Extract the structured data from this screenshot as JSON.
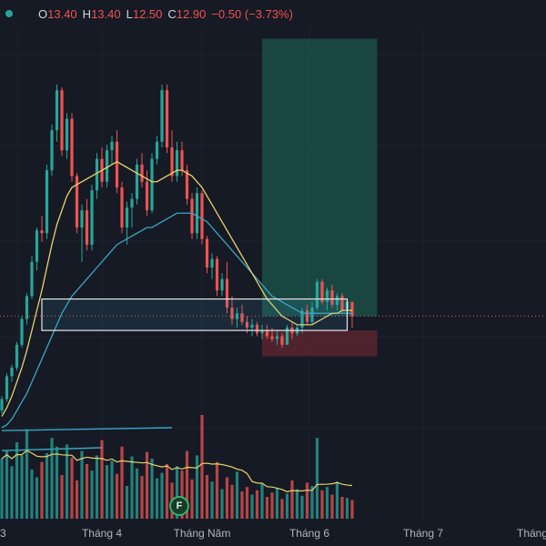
{
  "ohlc": {
    "O_label": "O",
    "O": "13.40",
    "H_label": "H",
    "H": "13.40",
    "L_label": "L",
    "L": "12.50",
    "C_label": "C",
    "C": "12.90",
    "change": "−0.50 (−3.73%)"
  },
  "badge": {
    "label": "F"
  },
  "colors": {
    "background": "#161a25",
    "up": "#26a69a",
    "down": "#ef5350",
    "ma_fast": "#e8d36a",
    "ma_slow": "#3aa7c4",
    "target_zone": "#1f6b5b",
    "stop_zone": "#5c2530"
  },
  "chart_data": {
    "type": "candlestick",
    "x_ticks": [
      "3",
      "Tháng 4",
      "Tháng Năm",
      "Tháng 6",
      "Tháng 7",
      "Tháng"
    ],
    "price_range": [
      9.0,
      23.0
    ],
    "candles": [
      [
        9.6,
        10.1,
        9.5,
        10.0
      ],
      [
        10.0,
        10.9,
        9.9,
        10.8
      ],
      [
        10.8,
        11.2,
        10.6,
        11.1
      ],
      [
        11.1,
        12.0,
        11.0,
        11.9
      ],
      [
        11.9,
        12.9,
        11.8,
        12.8
      ],
      [
        12.8,
        13.7,
        12.6,
        13.6
      ],
      [
        13.6,
        15.0,
        13.5,
        14.8
      ],
      [
        14.8,
        16.0,
        14.5,
        15.9
      ],
      [
        15.9,
        16.4,
        15.5,
        15.8
      ],
      [
        15.8,
        18.2,
        15.6,
        18.0
      ],
      [
        18.0,
        19.6,
        17.8,
        19.4
      ],
      [
        19.4,
        21.0,
        19.0,
        20.8
      ],
      [
        20.8,
        20.9,
        18.5,
        18.7
      ],
      [
        18.7,
        20.0,
        18.4,
        19.8
      ],
      [
        19.8,
        20.0,
        17.6,
        17.8
      ],
      [
        17.8,
        17.9,
        15.8,
        16.0
      ],
      [
        16.0,
        16.8,
        14.8,
        16.6
      ],
      [
        16.6,
        17.0,
        15.2,
        15.4
      ],
      [
        15.4,
        17.5,
        15.2,
        17.3
      ],
      [
        17.3,
        18.6,
        17.0,
        18.4
      ],
      [
        18.4,
        18.8,
        17.4,
        17.6
      ],
      [
        17.6,
        18.9,
        17.4,
        18.7
      ],
      [
        18.7,
        19.2,
        18.2,
        19.0
      ],
      [
        19.0,
        19.4,
        17.2,
        17.4
      ],
      [
        17.4,
        17.6,
        15.8,
        16.0
      ],
      [
        16.0,
        16.9,
        15.4,
        16.7
      ],
      [
        16.7,
        17.2,
        16.0,
        17.0
      ],
      [
        17.0,
        18.4,
        16.8,
        18.2
      ],
      [
        18.2,
        18.6,
        17.4,
        17.6
      ],
      [
        17.6,
        18.0,
        16.4,
        16.6
      ],
      [
        16.6,
        18.6,
        16.5,
        18.4
      ],
      [
        18.4,
        19.2,
        18.2,
        19.0
      ],
      [
        19.0,
        21.0,
        18.8,
        20.8
      ],
      [
        20.8,
        21.0,
        18.6,
        18.8
      ],
      [
        18.8,
        19.4,
        17.6,
        17.8
      ],
      [
        17.8,
        19.0,
        17.6,
        18.7
      ],
      [
        18.7,
        19.0,
        17.8,
        18.0
      ],
      [
        18.0,
        18.2,
        16.8,
        17.0
      ],
      [
        17.0,
        17.2,
        15.6,
        15.8
      ],
      [
        15.8,
        17.4,
        15.6,
        17.2
      ],
      [
        17.2,
        17.3,
        15.4,
        15.6
      ],
      [
        15.6,
        15.7,
        14.4,
        14.6
      ],
      [
        14.6,
        15.1,
        14.2,
        14.9
      ],
      [
        14.9,
        15.0,
        13.6,
        13.8
      ],
      [
        13.8,
        14.4,
        13.6,
        14.2
      ],
      [
        14.2,
        14.8,
        13.0,
        13.2
      ],
      [
        13.2,
        13.6,
        12.6,
        12.8
      ],
      [
        12.8,
        13.2,
        12.5,
        13.0
      ],
      [
        13.0,
        13.3,
        12.6,
        12.7
      ],
      [
        12.7,
        12.9,
        12.3,
        12.5
      ],
      [
        12.5,
        12.8,
        12.2,
        12.6
      ],
      [
        12.6,
        12.7,
        12.2,
        12.3
      ],
      [
        12.3,
        12.6,
        12.1,
        12.4
      ],
      [
        12.4,
        12.6,
        12.1,
        12.2
      ],
      [
        12.2,
        12.5,
        12.0,
        12.1
      ],
      [
        12.1,
        12.4,
        11.9,
        12.2
      ],
      [
        12.2,
        12.3,
        11.8,
        11.9
      ],
      [
        11.9,
        12.6,
        11.9,
        12.5
      ],
      [
        12.5,
        12.7,
        12.1,
        12.3
      ],
      [
        12.3,
        12.6,
        12.2,
        12.5
      ],
      [
        12.5,
        13.2,
        12.3,
        13.1
      ],
      [
        13.1,
        13.3,
        12.6,
        12.7
      ],
      [
        12.7,
        13.4,
        12.6,
        13.2
      ],
      [
        13.2,
        14.2,
        13.1,
        14.1
      ],
      [
        14.1,
        14.2,
        13.3,
        13.4
      ],
      [
        13.4,
        13.9,
        13.1,
        13.8
      ],
      [
        13.8,
        14.0,
        13.2,
        13.3
      ],
      [
        13.3,
        13.7,
        13.1,
        13.6
      ],
      [
        13.6,
        13.7,
        13.0,
        13.1
      ],
      [
        13.1,
        13.5,
        12.9,
        13.4
      ],
      [
        13.4,
        13.4,
        12.5,
        12.9
      ]
    ],
    "volume_relative": [
      0.55,
      0.62,
      0.48,
      0.7,
      0.58,
      0.82,
      0.45,
      0.38,
      0.52,
      0.6,
      0.74,
      0.66,
      0.4,
      0.68,
      0.56,
      0.35,
      0.62,
      0.5,
      0.44,
      0.58,
      0.72,
      0.49,
      0.53,
      0.41,
      0.66,
      0.3,
      0.57,
      0.46,
      0.39,
      0.61,
      0.55,
      0.37,
      0.42,
      0.5,
      0.33,
      0.48,
      0.44,
      0.62,
      0.36,
      0.58,
      0.95,
      0.4,
      0.34,
      0.52,
      0.27,
      0.38,
      0.31,
      0.43,
      0.25,
      0.29,
      0.22,
      0.26,
      0.32,
      0.2,
      0.24,
      0.28,
      0.18,
      0.23,
      0.35,
      0.27,
      0.21,
      0.33,
      0.3,
      0.74,
      0.26,
      0.29,
      0.22,
      0.34,
      0.2,
      0.19,
      0.17
    ],
    "ma_fast": [
      9.4,
      9.7,
      10.1,
      10.6,
      11.1,
      11.7,
      12.4,
      13.1,
      13.8,
      14.6,
      15.4,
      16.1,
      16.6,
      17.1,
      17.4,
      17.5,
      17.6,
      17.7,
      17.8,
      17.9,
      18.0,
      18.1,
      18.2,
      18.3,
      18.2,
      18.1,
      18.0,
      17.9,
      17.8,
      17.7,
      17.6,
      17.6,
      17.7,
      17.8,
      17.9,
      18.0,
      18.0,
      17.9,
      17.8,
      17.6,
      17.4,
      17.1,
      16.8,
      16.5,
      16.2,
      15.9,
      15.6,
      15.3,
      15.0,
      14.7,
      14.4,
      14.1,
      13.8,
      13.5,
      13.3,
      13.1,
      12.9,
      12.8,
      12.7,
      12.6,
      12.6,
      12.6,
      12.6,
      12.7,
      12.8,
      12.9,
      13.0,
      13.0,
      13.1,
      13.1,
      13.1
    ],
    "ma_slow": [
      9.0,
      9.1,
      9.3,
      9.6,
      9.9,
      10.2,
      10.6,
      11.0,
      11.4,
      11.8,
      12.2,
      12.6,
      13.0,
      13.3,
      13.6,
      13.8,
      14.0,
      14.2,
      14.4,
      14.6,
      14.8,
      15.0,
      15.2,
      15.4,
      15.5,
      15.6,
      15.7,
      15.8,
      15.9,
      16.0,
      16.0,
      16.1,
      16.2,
      16.3,
      16.4,
      16.5,
      16.5,
      16.5,
      16.5,
      16.4,
      16.3,
      16.2,
      16.0,
      15.8,
      15.6,
      15.4,
      15.2,
      15.0,
      14.8,
      14.6,
      14.4,
      14.2,
      14.0,
      13.8,
      13.6,
      13.5,
      13.4,
      13.3,
      13.2,
      13.1,
      13.0,
      13.0,
      13.0,
      13.0,
      13.0,
      13.0,
      13.0,
      13.0,
      13.0,
      13.0,
      13.0
    ],
    "support_box": {
      "x_start_candle": 8,
      "x_end_candle": 69,
      "price_low": 12.4,
      "price_high": 13.5
    },
    "target_zone": {
      "x_start_candle": 52,
      "x_end_candle": 75,
      "price_low": 12.9,
      "price_high": 22.6
    },
    "stop_zone": {
      "x_start_candle": 52,
      "x_end_candle": 75,
      "price_low": 11.5,
      "price_high": 12.4
    },
    "trendline_1": {
      "x_start_candle": 0,
      "x_end_candle": 34,
      "price_start": 8.9,
      "price_end": 9.0
    },
    "trendline_2": {
      "x_start_candle": 0,
      "x_end_candle": 20,
      "price_start": 8.2,
      "price_end": 8.3
    },
    "current_price": 12.9
  }
}
